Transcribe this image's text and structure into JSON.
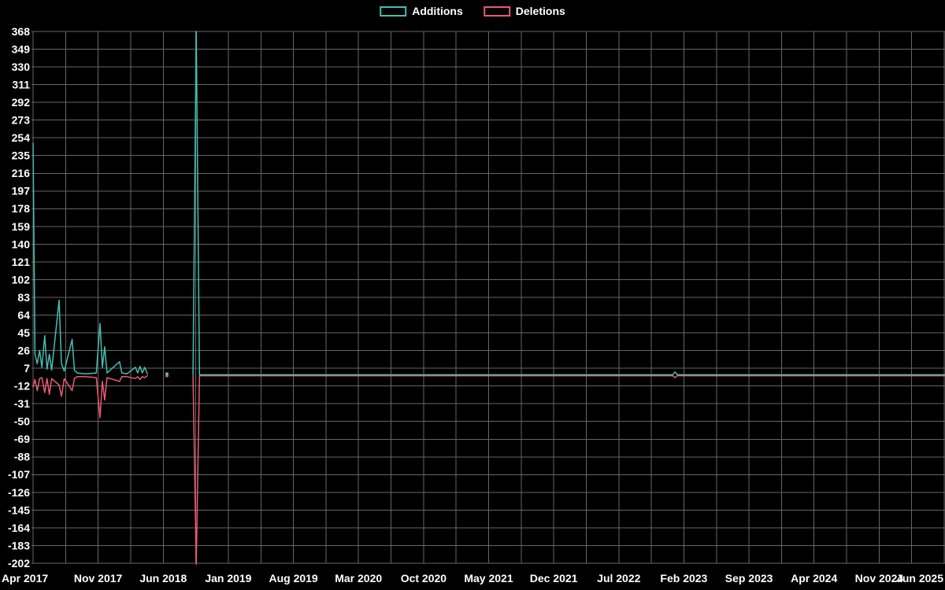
{
  "chart_data": {
    "type": "line",
    "title": "",
    "legend_position": "top-center",
    "grid": true,
    "background_color": "#000000",
    "grid_color": "#666666",
    "text_color": "#ffffff",
    "points_format": "[months_since_Apr_2017, value]",
    "x_axis": {
      "labels": [
        "Apr 2017",
        "Nov 2017",
        "Jun 2018",
        "Jan 2019",
        "Aug 2019",
        "Mar 2020",
        "Oct 2020",
        "May 2021",
        "Dec 2021",
        "Jul 2022",
        "Feb 2023",
        "Sep 2023",
        "Apr 2024",
        "Nov 2024",
        "Jun 2025"
      ],
      "months_between_labels": 7
    },
    "y_axis": {
      "max": 368,
      "min": -202,
      "step": 19,
      "ticks": [
        368,
        349,
        330,
        311,
        292,
        273,
        254,
        235,
        216,
        197,
        178,
        159,
        140,
        121,
        102,
        83,
        64,
        45,
        26,
        7,
        -12,
        -31,
        -50,
        -69,
        -88,
        -107,
        -126,
        -145,
        -164,
        -183,
        -202
      ]
    },
    "series": [
      {
        "name": "Additions",
        "color": "#45beb2",
        "segments": [
          [
            [
              0,
              248
            ],
            [
              0.2,
              22
            ],
            [
              0.45,
              12
            ],
            [
              0.7,
              26
            ],
            [
              0.95,
              8
            ],
            [
              1.25,
              42
            ],
            [
              1.5,
              6
            ],
            [
              1.75,
              22
            ],
            [
              2.0,
              5
            ],
            [
              2.8,
              80
            ],
            [
              3.05,
              12
            ],
            [
              3.35,
              4
            ],
            [
              4.2,
              38
            ],
            [
              4.45,
              5
            ],
            [
              4.75,
              2
            ],
            [
              5.6,
              1
            ],
            [
              6.8,
              2
            ],
            [
              7.2,
              55
            ],
            [
              7.45,
              8
            ],
            [
              7.7,
              30
            ],
            [
              7.95,
              2
            ],
            [
              9.3,
              14
            ],
            [
              9.55,
              2
            ],
            [
              10.1,
              1
            ],
            [
              11.0,
              8
            ],
            [
              11.25,
              2
            ],
            [
              11.5,
              9
            ],
            [
              11.75,
              2
            ],
            [
              12.0,
              8
            ],
            [
              12.3,
              1
            ]
          ],
          [
            [
              14.4,
              1
            ]
          ],
          [
            [
              17.2,
              0
            ],
            [
              17.55,
              368
            ],
            [
              17.9,
              0
            ],
            [
              68.8,
              0
            ],
            [
              69.05,
              3
            ],
            [
              69.3,
              0
            ],
            [
              98.1,
              0
            ]
          ]
        ]
      },
      {
        "name": "Deletions",
        "color": "#ee5878",
        "segments": [
          [
            [
              0,
              -12
            ],
            [
              0.2,
              -4
            ],
            [
              0.45,
              -16
            ],
            [
              0.7,
              -3
            ],
            [
              0.95,
              -2
            ],
            [
              1.25,
              -18
            ],
            [
              1.5,
              -3
            ],
            [
              1.75,
              -20
            ],
            [
              2.0,
              -3
            ],
            [
              2.8,
              -10
            ],
            [
              3.05,
              -22
            ],
            [
              3.35,
              -3
            ],
            [
              4.2,
              -16
            ],
            [
              4.45,
              -3
            ],
            [
              4.75,
              -1
            ],
            [
              5.6,
              -1
            ],
            [
              6.8,
              -2
            ],
            [
              7.2,
              -45
            ],
            [
              7.45,
              -6
            ],
            [
              7.7,
              -26
            ],
            [
              7.95,
              -2
            ],
            [
              9.3,
              -6
            ],
            [
              9.55,
              -1
            ],
            [
              10.1,
              -1
            ],
            [
              11.0,
              -3
            ],
            [
              11.25,
              -1
            ],
            [
              11.5,
              -4
            ],
            [
              11.75,
              -1
            ],
            [
              12.0,
              -2
            ],
            [
              12.3,
              0
            ]
          ],
          [
            [
              14.4,
              0
            ]
          ],
          [
            [
              17.2,
              0
            ],
            [
              17.55,
              -202
            ],
            [
              17.9,
              0
            ],
            [
              68.8,
              0
            ],
            [
              69.05,
              -2
            ],
            [
              69.3,
              0
            ],
            [
              98.1,
              0
            ]
          ]
        ]
      }
    ]
  }
}
